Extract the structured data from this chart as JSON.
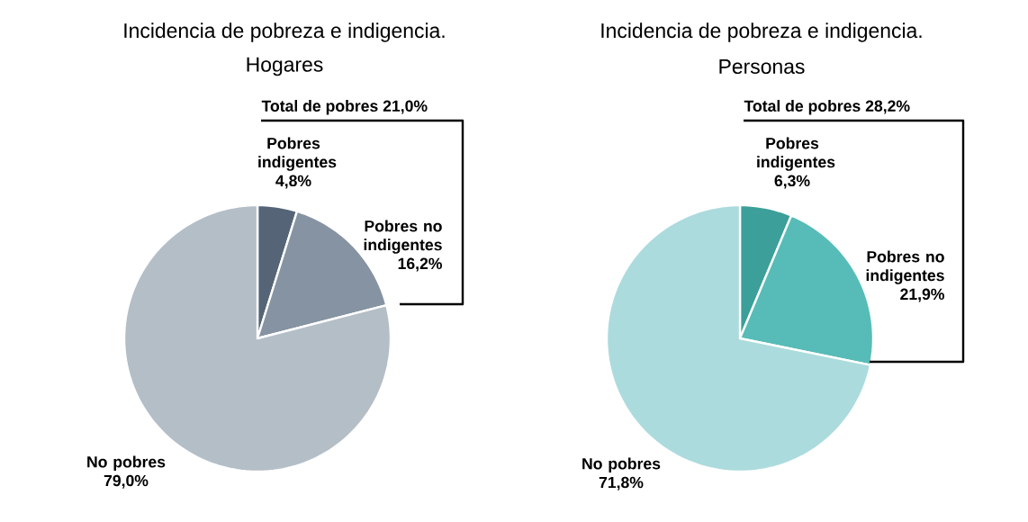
{
  "chart_data": [
    {
      "type": "pie",
      "title": "Incidencia de pobreza e indigencia.",
      "subtitle": "Hogares",
      "categories": [
        "Pobres indigentes",
        "Pobres no indigentes",
        "No pobres"
      ],
      "values": [
        4.8,
        16.2,
        79.0
      ],
      "value_labels": [
        "4,8%",
        "16,2%",
        "79,0%"
      ],
      "colors": [
        "#556577",
        "#8593a2",
        "#b4bec7"
      ],
      "annotations": [
        "Total de pobres 21,0%"
      ]
    },
    {
      "type": "pie",
      "title": "Incidencia de pobreza e indigencia.",
      "subtitle": "Personas",
      "categories": [
        "Pobres indigentes",
        "Pobres no indigentes",
        "No pobres"
      ],
      "values": [
        6.3,
        21.9,
        71.8
      ],
      "value_labels": [
        "6,3%",
        "21,9%",
        "71,8%"
      ],
      "colors": [
        "#3c9f99",
        "#57bcb7",
        "#acdbdd"
      ],
      "annotations": [
        "Total de pobres 28,2%"
      ]
    }
  ]
}
